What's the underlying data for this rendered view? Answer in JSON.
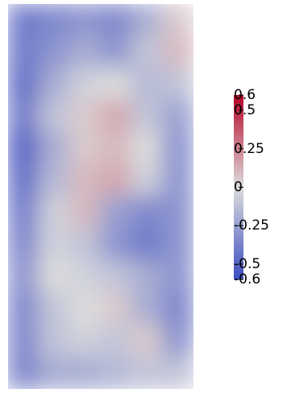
{
  "chart_data": {
    "type": "heatmap",
    "values": [
      [
        -0.4,
        -0.35,
        -0.3,
        -0.35,
        -0.2,
        0.05
      ],
      [
        -0.4,
        -0.3,
        -0.2,
        -0.3,
        -0.1,
        0.1
      ],
      [
        -0.45,
        -0.2,
        -0.05,
        0,
        -0.15,
        -0.1
      ],
      [
        -0.4,
        -0.1,
        0.05,
        0.15,
        -0.1,
        -0.25
      ],
      [
        -0.5,
        -0.2,
        0.05,
        0.1,
        0,
        -0.3
      ],
      [
        -0.45,
        -0.15,
        0.1,
        0.15,
        -0.05,
        -0.3
      ],
      [
        -0.4,
        -0.05,
        0.1,
        -0.25,
        -0.35,
        -0.3
      ],
      [
        -0.35,
        -0.05,
        -0.1,
        -0.3,
        -0.4,
        -0.3
      ],
      [
        -0.3,
        0,
        -0.05,
        -0.1,
        -0.2,
        -0.3
      ],
      [
        -0.35,
        -0.1,
        0,
        0.05,
        -0.2,
        -0.35
      ],
      [
        -0.35,
        -0.1,
        -0.05,
        -0.1,
        0.05,
        -0.3
      ],
      [
        -0.35,
        -0.2,
        -0.2,
        -0.15,
        -0.1,
        -0.1
      ]
    ],
    "colormap": [
      "#3b4cc0",
      "#dddddd",
      "#b40426"
    ],
    "clim": [
      -0.6,
      0.6
    ],
    "cticks": [
      -0.6,
      -0.5,
      -0.25,
      0,
      0.25,
      0.5,
      0.6
    ]
  }
}
